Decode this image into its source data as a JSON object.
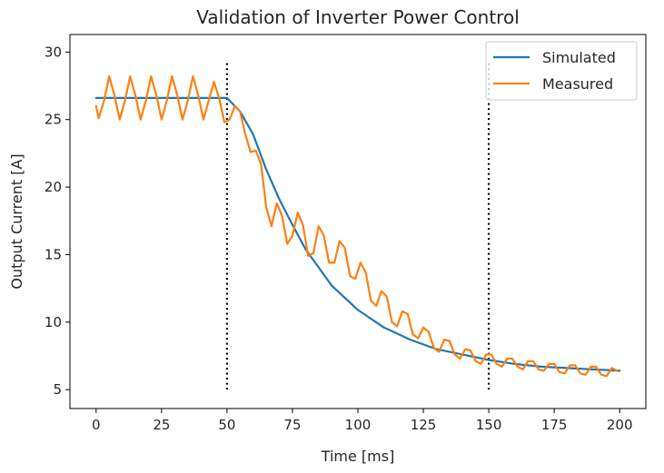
{
  "chart_data": {
    "type": "line",
    "title": "Validation of Inverter Power Control",
    "xlabel": "Time [ms]",
    "ylabel": "Output Current [A]",
    "xlim": [
      -10,
      210
    ],
    "ylim": [
      3.6,
      31.3
    ],
    "xticks": [
      0,
      25,
      50,
      75,
      100,
      125,
      150,
      175,
      200
    ],
    "yticks": [
      5,
      10,
      15,
      20,
      25,
      30
    ],
    "grid": false,
    "legend_position": "top-right",
    "vlines": [
      {
        "x": 50,
        "y_range": [
          5,
          29.2
        ],
        "style": "dotted",
        "color": "#000000"
      },
      {
        "x": 150,
        "y_range": [
          5,
          29.2
        ],
        "style": "dotted",
        "color": "#000000"
      }
    ],
    "series": [
      {
        "name": "Simulated",
        "color": "#1f77b4",
        "x": [
          0,
          10,
          20,
          30,
          40,
          50,
          55,
          60,
          65,
          70,
          75,
          80,
          90,
          100,
          110,
          120,
          130,
          140,
          150,
          160,
          170,
          180,
          190,
          200
        ],
        "y": [
          26.6,
          26.6,
          26.6,
          26.6,
          26.6,
          26.6,
          25.6,
          23.9,
          21.3,
          19.1,
          17.2,
          15.4,
          12.7,
          10.9,
          9.6,
          8.7,
          8.0,
          7.6,
          7.2,
          6.9,
          6.7,
          6.6,
          6.5,
          6.4
        ]
      },
      {
        "name": "Measured",
        "color": "#ff7f0e",
        "x": [
          0,
          1,
          3,
          5,
          7,
          9,
          11,
          13,
          15,
          17,
          19,
          21,
          23,
          25,
          27,
          29,
          31,
          33,
          35,
          37,
          39,
          41,
          43,
          45,
          47,
          49,
          51,
          53,
          55,
          57,
          59,
          61,
          63,
          65,
          67,
          69,
          71,
          73,
          75,
          77,
          79,
          81,
          83,
          85,
          87,
          89,
          91,
          93,
          95,
          97,
          99,
          101,
          103,
          105,
          107,
          109,
          111,
          113,
          115,
          117,
          119,
          121,
          123,
          125,
          127,
          129,
          131,
          133,
          135,
          137,
          139,
          141,
          143,
          145,
          147,
          149,
          151,
          153,
          155,
          157,
          159,
          161,
          163,
          165,
          167,
          169,
          171,
          173,
          175,
          177,
          179,
          181,
          183,
          185,
          187,
          189,
          191,
          193,
          195,
          197,
          199
        ],
        "y": [
          26.0,
          25.1,
          26.4,
          28.2,
          26.8,
          25.0,
          26.4,
          28.2,
          26.8,
          25.0,
          26.4,
          28.2,
          26.8,
          25.0,
          26.4,
          28.2,
          26.8,
          25.0,
          26.4,
          28.2,
          26.8,
          25.0,
          26.4,
          27.8,
          26.6,
          24.8,
          25.0,
          26.0,
          25.6,
          23.9,
          22.6,
          22.7,
          21.7,
          18.5,
          17.1,
          18.8,
          17.9,
          15.8,
          16.4,
          18.1,
          17.2,
          14.9,
          15.1,
          17.1,
          16.4,
          14.4,
          14.4,
          16.0,
          15.5,
          13.4,
          13.2,
          14.4,
          13.7,
          11.6,
          11.2,
          12.3,
          11.9,
          10.0,
          9.7,
          10.8,
          10.6,
          9.1,
          8.8,
          9.6,
          9.3,
          8.1,
          7.8,
          8.7,
          8.6,
          7.6,
          7.3,
          8.0,
          7.9,
          7.1,
          6.9,
          7.6,
          7.6,
          6.9,
          6.7,
          7.3,
          7.3,
          6.7,
          6.5,
          7.1,
          7.1,
          6.5,
          6.4,
          6.9,
          6.9,
          6.3,
          6.2,
          6.8,
          6.8,
          6.2,
          6.1,
          6.7,
          6.7,
          6.1,
          6.0,
          6.6,
          6.4
        ]
      }
    ]
  }
}
